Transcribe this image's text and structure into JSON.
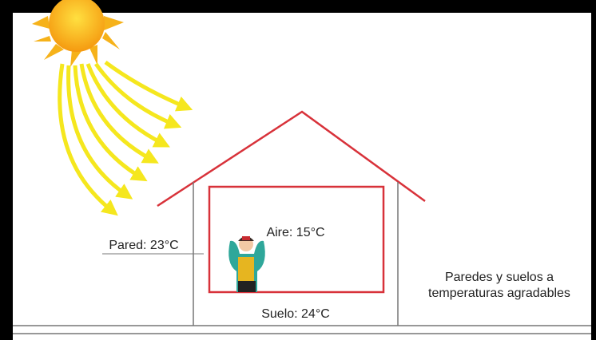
{
  "labels": {
    "wall": "Pared: 23°C",
    "air": "Aire: 15°C",
    "floor": "Suelo: 24°C"
  },
  "note": {
    "lines": [
      "Paredes y suelos a",
      "temperaturas agradables"
    ]
  }
}
